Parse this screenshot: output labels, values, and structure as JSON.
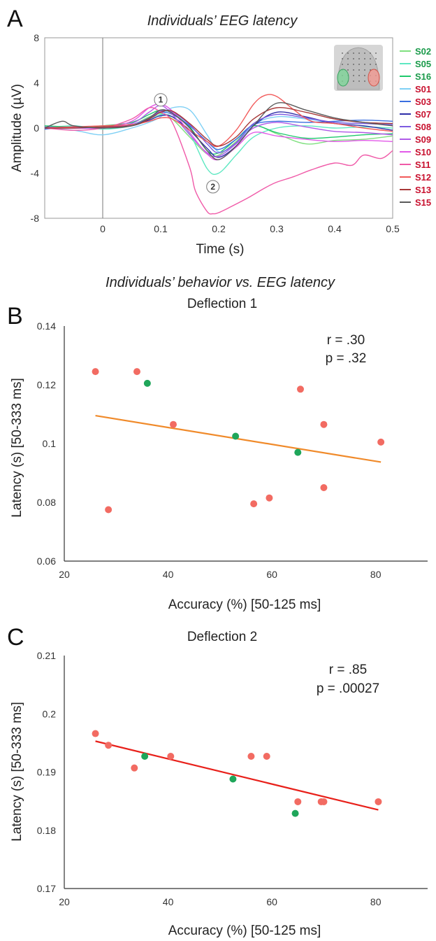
{
  "figure": {
    "panel_a": {
      "letter": "A",
      "title": "Individuals’ EEG latency",
      "xlabel": "Time (s)",
      "ylabel": "Amplitude (µV)",
      "marker_1": "1",
      "marker_2": "2",
      "inset": "scalp-map-icon"
    },
    "panel_b": {
      "letter": "B"
    },
    "panel_c": {
      "letter": "C"
    },
    "bc_heading": "Individuals’ behavior vs. EEG latency"
  },
  "colors": {
    "green_subject": "#1a9a4a",
    "red_subject": "#c8102e",
    "fit_b": "#f08a2a",
    "fit_c": "#e8201a",
    "dot_green": "#1fa65a",
    "dot_red": "#f26b62"
  },
  "chart_data": [
    {
      "type": "line",
      "panel": "A",
      "title": "Individuals’ EEG latency",
      "xlabel": "Time (s)",
      "ylabel": "Amplitude (µV)",
      "xlim": [
        -0.1,
        0.5
      ],
      "ylim": [
        -8,
        8
      ],
      "xticks": [
        0,
        0.1,
        0.2,
        0.3,
        0.4,
        0.5
      ],
      "yticks": [
        8,
        4,
        0,
        -4,
        -8
      ],
      "vertical_line_at": 0,
      "annotations": [
        {
          "text": "1",
          "x": 0.1,
          "y": 2.5
        },
        {
          "text": "2",
          "x": 0.19,
          "y": -5.2
        }
      ],
      "legend_position": "right",
      "series": [
        {
          "name": "S02",
          "color": "#7fe07f",
          "group": "green",
          "x": [
            -0.1,
            -0.05,
            0,
            0.05,
            0.08,
            0.1,
            0.12,
            0.15,
            0.18,
            0.2,
            0.23,
            0.26,
            0.3,
            0.35,
            0.4,
            0.45,
            0.5
          ],
          "y": [
            0.1,
            0,
            0.1,
            0.3,
            1.0,
            1.3,
            0.8,
            -0.8,
            -2.3,
            -2.4,
            -1.2,
            0.2,
            -0.5,
            -1.4,
            -1.1,
            -1.0,
            -0.7
          ]
        },
        {
          "name": "S05",
          "color": "#5ee8c2",
          "group": "green",
          "x": [
            -0.1,
            -0.05,
            0,
            0.05,
            0.08,
            0.1,
            0.12,
            0.15,
            0.18,
            0.2,
            0.23,
            0.26,
            0.3,
            0.35,
            0.4,
            0.45,
            0.5
          ],
          "y": [
            0,
            0.2,
            -0.1,
            0.2,
            0.8,
            1.2,
            1.0,
            -0.5,
            -3.6,
            -4.0,
            -2.4,
            -0.8,
            0.0,
            0.2,
            0.0,
            0.1,
            0.0
          ]
        },
        {
          "name": "S16",
          "color": "#1fc96d",
          "group": "green",
          "x": [
            -0.1,
            -0.05,
            0,
            0.05,
            0.08,
            0.1,
            0.12,
            0.15,
            0.18,
            0.2,
            0.23,
            0.26,
            0.3,
            0.35,
            0.4,
            0.45,
            0.5
          ],
          "y": [
            0.2,
            0.1,
            0.2,
            0.5,
            1.2,
            1.6,
            1.3,
            0.1,
            -2.0,
            -2.2,
            -1.0,
            0.2,
            -0.4,
            -0.9,
            -0.8,
            -0.6,
            -0.5
          ]
        },
        {
          "name": "S01",
          "color": "#7fd0f5",
          "group": "red",
          "x": [
            -0.1,
            -0.05,
            0,
            0.05,
            0.08,
            0.1,
            0.12,
            0.15,
            0.18,
            0.2,
            0.23,
            0.26,
            0.3,
            0.35,
            0.4,
            0.45,
            0.5
          ],
          "y": [
            0.0,
            -0.2,
            -0.6,
            0.0,
            0.5,
            1.0,
            1.8,
            1.6,
            -0.6,
            -2.1,
            -1.4,
            0.3,
            1.0,
            0.8,
            0.5,
            0.4,
            0.4
          ]
        },
        {
          "name": "S03",
          "color": "#3a6fe0",
          "group": "red",
          "x": [
            -0.1,
            -0.05,
            0,
            0.05,
            0.08,
            0.1,
            0.12,
            0.15,
            0.18,
            0.2,
            0.23,
            0.26,
            0.3,
            0.35,
            0.4,
            0.45,
            0.5
          ],
          "y": [
            -0.1,
            0.1,
            0.0,
            0.3,
            0.9,
            1.4,
            1.2,
            0.2,
            -1.2,
            -1.9,
            -1.0,
            0.3,
            0.6,
            0.5,
            0.6,
            0.7,
            0.6
          ]
        },
        {
          "name": "S07",
          "color": "#2e2ea8",
          "group": "red",
          "x": [
            -0.1,
            -0.05,
            0,
            0.05,
            0.08,
            0.1,
            0.12,
            0.15,
            0.18,
            0.2,
            0.23,
            0.26,
            0.3,
            0.35,
            0.4,
            0.45,
            0.5
          ],
          "y": [
            0.0,
            0.1,
            0.0,
            0.2,
            0.7,
            1.1,
            1.0,
            -0.2,
            -1.8,
            -2.6,
            -1.6,
            0.2,
            1.4,
            1.0,
            0.4,
            0.2,
            -0.2
          ]
        },
        {
          "name": "S08",
          "color": "#7d5ce0",
          "group": "red",
          "x": [
            -0.1,
            -0.05,
            0,
            0.05,
            0.08,
            0.1,
            0.12,
            0.15,
            0.18,
            0.2,
            0.23,
            0.26,
            0.3,
            0.35,
            0.4,
            0.45,
            0.5
          ],
          "y": [
            0.1,
            0.0,
            0.1,
            0.3,
            0.9,
            1.5,
            1.4,
            0.3,
            -1.4,
            -2.2,
            -1.3,
            0.4,
            1.2,
            0.9,
            0.5,
            0.4,
            0.3
          ]
        },
        {
          "name": "S09",
          "color": "#b05ae8",
          "group": "red",
          "x": [
            -0.1,
            -0.05,
            0,
            0.05,
            0.08,
            0.1,
            0.12,
            0.15,
            0.18,
            0.2,
            0.23,
            0.26,
            0.3,
            0.35,
            0.4,
            0.45,
            0.5
          ],
          "y": [
            0.0,
            0.0,
            0.0,
            0.4,
            1.4,
            2.0,
            1.2,
            -0.6,
            -2.2,
            -2.5,
            -1.4,
            0.0,
            0.5,
            0.1,
            -0.3,
            -0.4,
            -0.6
          ]
        },
        {
          "name": "S10",
          "color": "#e25ae8",
          "group": "red",
          "x": [
            -0.1,
            -0.05,
            0,
            0.05,
            0.08,
            0.1,
            0.12,
            0.15,
            0.18,
            0.2,
            0.23,
            0.26,
            0.3,
            0.35,
            0.4,
            0.45,
            0.5
          ],
          "y": [
            0.0,
            0.1,
            0.0,
            0.6,
            1.8,
            2.1,
            1.5,
            -0.4,
            -2.3,
            -2.8,
            -1.7,
            -0.4,
            -0.7,
            -1.0,
            -1.2,
            -1.1,
            -1.2
          ]
        },
        {
          "name": "S11",
          "color": "#f05aa8",
          "group": "red",
          "x": [
            -0.1,
            -0.05,
            0,
            0.05,
            0.08,
            0.1,
            0.12,
            0.15,
            0.16,
            0.18,
            0.19,
            0.2,
            0.22,
            0.25,
            0.28,
            0.3,
            0.33,
            0.36,
            0.4,
            0.43,
            0.45,
            0.48,
            0.5
          ],
          "y": [
            0.0,
            -0.2,
            0.0,
            0.8,
            1.8,
            1.4,
            0.5,
            -3.5,
            -5.6,
            -7.4,
            -7.6,
            -7.5,
            -7.0,
            -6.2,
            -5.3,
            -4.8,
            -4.3,
            -3.7,
            -3.1,
            -3.3,
            -2.4,
            -2.7,
            -2.0
          ]
        },
        {
          "name": "S12",
          "color": "#f25a5a",
          "group": "red",
          "x": [
            -0.1,
            -0.05,
            0,
            0.05,
            0.08,
            0.1,
            0.12,
            0.15,
            0.18,
            0.2,
            0.23,
            0.26,
            0.28,
            0.3,
            0.33,
            0.36,
            0.4,
            0.45,
            0.5
          ],
          "y": [
            0.0,
            0.1,
            0.2,
            0.3,
            0.6,
            0.9,
            0.8,
            -0.2,
            -1.2,
            -1.6,
            -0.2,
            2.1,
            2.9,
            2.8,
            1.6,
            0.6,
            0.4,
            0.0,
            -0.3
          ]
        },
        {
          "name": "S13",
          "color": "#a83838",
          "group": "red",
          "x": [
            -0.1,
            -0.05,
            0,
            0.05,
            0.08,
            0.1,
            0.12,
            0.15,
            0.18,
            0.2,
            0.23,
            0.26,
            0.3,
            0.35,
            0.4,
            0.45,
            0.5
          ],
          "y": [
            0.0,
            0.0,
            0.1,
            0.2,
            0.8,
            1.4,
            1.5,
            0.4,
            -1.0,
            -1.6,
            -0.8,
            0.8,
            1.8,
            1.4,
            0.8,
            0.5,
            0.4
          ]
        },
        {
          "name": "S15",
          "color": "#5a5a5a",
          "group": "red",
          "x": [
            -0.1,
            -0.07,
            -0.05,
            0,
            0.05,
            0.08,
            0.1,
            0.12,
            0.15,
            0.18,
            0.2,
            0.23,
            0.26,
            0.3,
            0.35,
            0.4,
            0.45,
            0.5
          ],
          "y": [
            0.0,
            0.6,
            0.2,
            0.0,
            0.2,
            0.9,
            1.6,
            1.3,
            0.0,
            -2.0,
            -2.8,
            -1.6,
            0.2,
            2.2,
            1.6,
            0.9,
            0.5,
            0.2
          ]
        }
      ]
    },
    {
      "type": "scatter",
      "panel": "B",
      "title": "Deflection 1",
      "xlabel": "Accuracy (%) [50-125 ms]",
      "ylabel": "Latency (s) [50-333 ms]",
      "xlim": [
        20,
        90
      ],
      "ylim": [
        0.06,
        0.14
      ],
      "xticks": [
        20,
        40,
        60,
        80
      ],
      "yticks": [
        0.14,
        0.12,
        0.1,
        0.08,
        0.06
      ],
      "ytick_labels": [
        "0.14",
        "0.12",
        "0.1",
        "0.08",
        "0.06"
      ],
      "stat_r": "r = .30",
      "stat_p": "p = .32",
      "fit_line": {
        "x": [
          26,
          81
        ],
        "y": [
          0.1095,
          0.0937
        ]
      },
      "points": [
        {
          "x": 26,
          "y": 0.1245,
          "group": "red"
        },
        {
          "x": 28.5,
          "y": 0.0775,
          "group": "red"
        },
        {
          "x": 34,
          "y": 0.1245,
          "group": "red"
        },
        {
          "x": 36,
          "y": 0.1205,
          "group": "green"
        },
        {
          "x": 41,
          "y": 0.1065,
          "group": "red"
        },
        {
          "x": 53,
          "y": 0.1025,
          "group": "green"
        },
        {
          "x": 56.5,
          "y": 0.0795,
          "group": "red"
        },
        {
          "x": 59.5,
          "y": 0.0815,
          "group": "red"
        },
        {
          "x": 65,
          "y": 0.097,
          "group": "green"
        },
        {
          "x": 65.5,
          "y": 0.1185,
          "group": "red"
        },
        {
          "x": 70,
          "y": 0.1065,
          "group": "red"
        },
        {
          "x": 70,
          "y": 0.085,
          "group": "red"
        },
        {
          "x": 81,
          "y": 0.1005,
          "group": "red"
        }
      ]
    },
    {
      "type": "scatter",
      "panel": "C",
      "title": "Deflection 2",
      "xlabel": "Accuracy (%) [50-125 ms]",
      "ylabel": "Latency (s) [50-333 ms]",
      "xlim": [
        20,
        90
      ],
      "ylim": [
        0.17,
        0.21
      ],
      "xticks": [
        20,
        40,
        60,
        80
      ],
      "yticks": [
        0.21,
        0.2,
        0.19,
        0.18,
        0.17
      ],
      "ytick_labels": [
        "0.21",
        "0.2",
        "0.19",
        "0.18",
        "0.17"
      ],
      "stat_r": "r = .85",
      "stat_p": "p = .00027",
      "fit_line": {
        "x": [
          26,
          80.5
        ],
        "y": [
          0.1953,
          0.1835
        ]
      },
      "points": [
        {
          "x": 26,
          "y": 0.1966,
          "group": "red"
        },
        {
          "x": 28.5,
          "y": 0.1946,
          "group": "red"
        },
        {
          "x": 33.5,
          "y": 0.1907,
          "group": "red"
        },
        {
          "x": 35.5,
          "y": 0.1927,
          "group": "green"
        },
        {
          "x": 40.5,
          "y": 0.1927,
          "group": "red"
        },
        {
          "x": 52.5,
          "y": 0.1888,
          "group": "green"
        },
        {
          "x": 56,
          "y": 0.1927,
          "group": "red"
        },
        {
          "x": 59,
          "y": 0.1927,
          "group": "red"
        },
        {
          "x": 64.5,
          "y": 0.1829,
          "group": "green"
        },
        {
          "x": 65,
          "y": 0.1849,
          "group": "red"
        },
        {
          "x": 69.5,
          "y": 0.1849,
          "group": "red"
        },
        {
          "x": 70,
          "y": 0.1849,
          "group": "red"
        },
        {
          "x": 80.5,
          "y": 0.1849,
          "group": "red"
        }
      ]
    }
  ]
}
